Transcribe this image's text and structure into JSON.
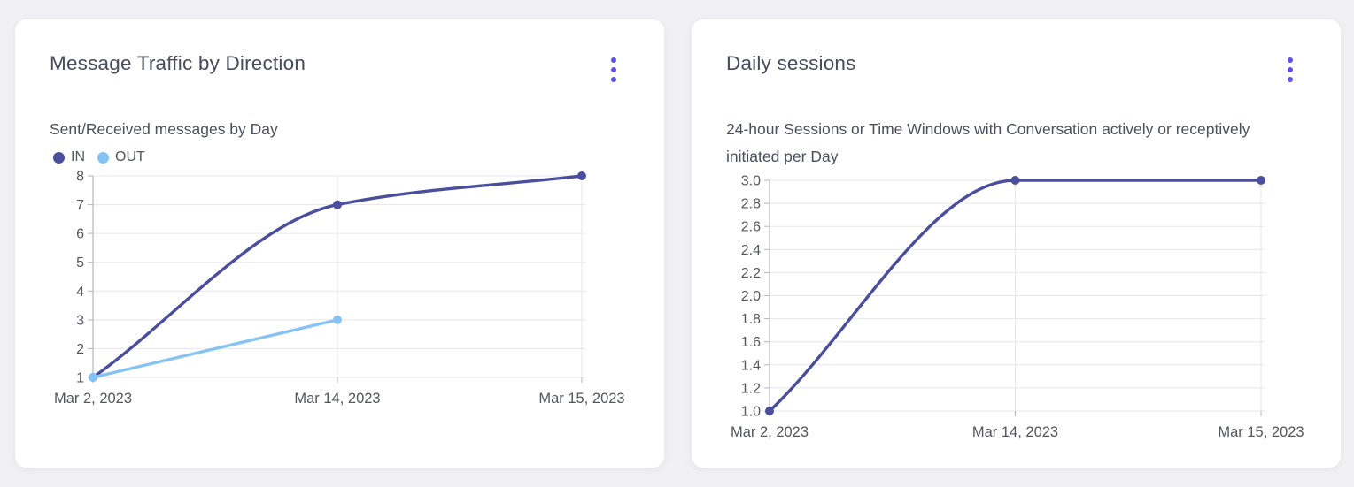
{
  "window": {
    "background": "#f1f1f4"
  },
  "colors": {
    "card_bg": "#ffffff",
    "accent": "#5a4ff2",
    "title_text": "#484b5b",
    "subtitle_text": "#4c4f5d",
    "tick_text": "#54565f",
    "grid": "#e7e7eb",
    "axis": "#b4b4bd",
    "series_in": "#4a4e9c",
    "series_out": "#85c3f5"
  },
  "cards": [
    {
      "title": "Message Traffic by Direction",
      "subtitle": "Sent/Received messages by Day",
      "menu_icon": "kebab-menu",
      "legend": [
        {
          "label": "IN",
          "color": "#4a4e9c"
        },
        {
          "label": "OUT",
          "color": "#85c3f5"
        }
      ]
    },
    {
      "title": "Daily sessions",
      "subtitle": "24-hour Sessions or Time Windows with Conversation actively or receptively initiated per Day",
      "menu_icon": "kebab-menu",
      "legend": []
    }
  ],
  "chart_data": [
    {
      "type": "line",
      "title": "Message Traffic by Direction",
      "subtitle": "Sent/Received messages by Day",
      "x": [
        "Mar 2, 2023",
        "Mar 14, 2023",
        "Mar 15, 2023"
      ],
      "series": [
        {
          "name": "IN",
          "color": "#4a4e9c",
          "values": [
            1,
            7,
            8
          ]
        },
        {
          "name": "OUT",
          "color": "#85c3f5",
          "values": [
            1,
            3,
            null
          ]
        }
      ],
      "ylim": [
        1,
        8
      ],
      "y_step": 1,
      "y_decimals": 0,
      "grid": true,
      "curve": "monotone",
      "legend_position": "top-left"
    },
    {
      "type": "line",
      "title": "Daily sessions",
      "subtitle": "24-hour Sessions or Time Windows with Conversation actively or receptively initiated per Day",
      "x": [
        "Mar 2, 2023",
        "Mar 14, 2023",
        "Mar 15, 2023"
      ],
      "series": [
        {
          "name": "Daily sessions",
          "color": "#4a4e9c",
          "values": [
            1,
            3,
            3
          ]
        }
      ],
      "ylim": [
        1,
        3
      ],
      "y_step": 0.2,
      "y_decimals": 1,
      "grid": true,
      "curve": "monotone",
      "legend_position": "none"
    }
  ]
}
